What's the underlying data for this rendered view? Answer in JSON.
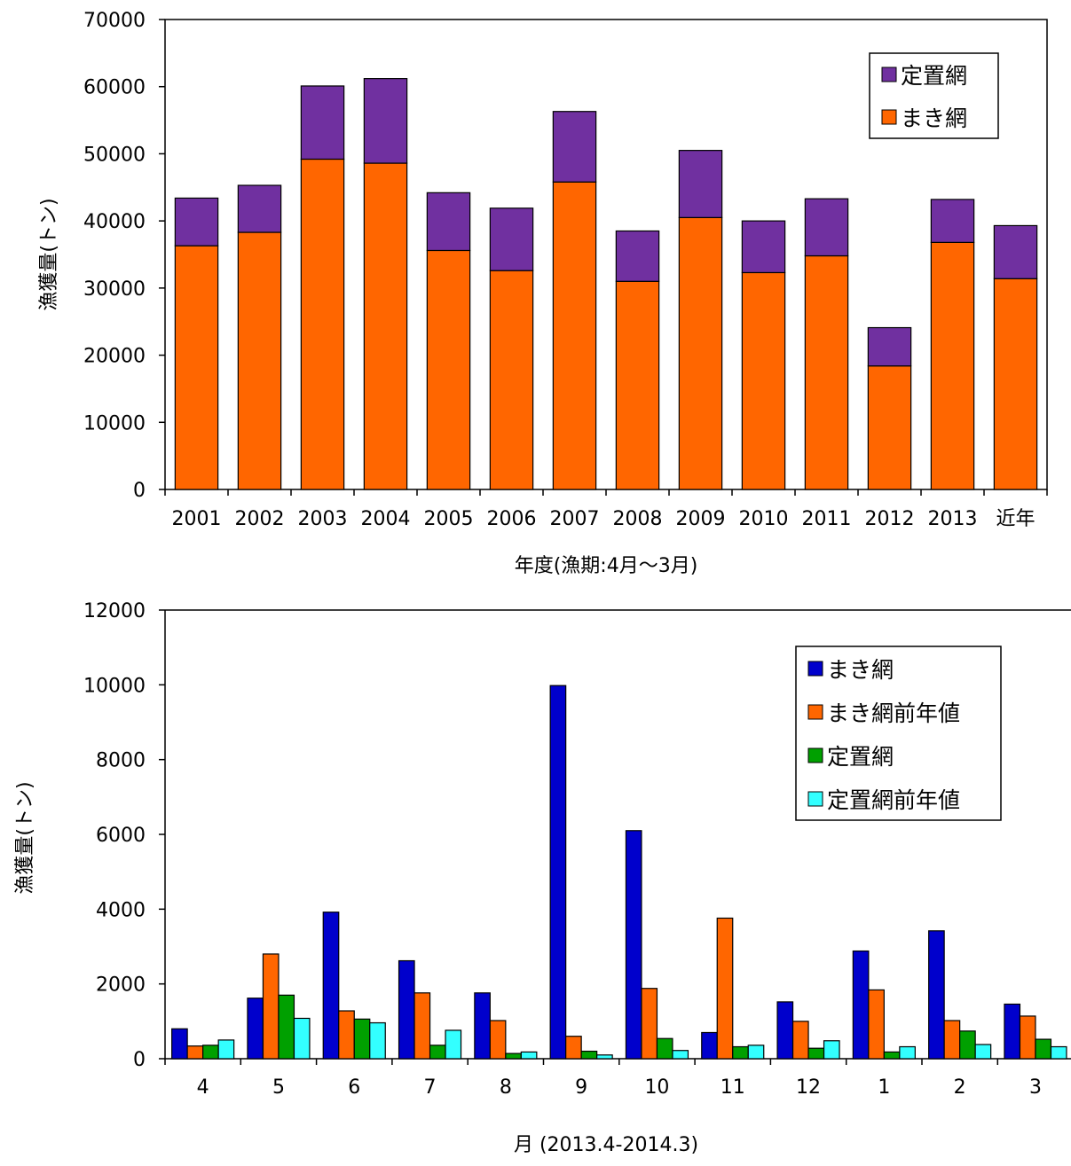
{
  "chart_data": [
    {
      "type": "bar",
      "stacked": true,
      "categories": [
        "2001",
        "2002",
        "2003",
        "2004",
        "2005",
        "2006",
        "2007",
        "2008",
        "2009",
        "2010",
        "2011",
        "2012",
        "2013",
        "近年"
      ],
      "series": [
        {
          "name": "まき網",
          "values": [
            36300,
            38300,
            49200,
            48600,
            35600,
            32600,
            45800,
            31000,
            40500,
            32300,
            34800,
            18400,
            36800,
            31400
          ]
        },
        {
          "name": "定置網",
          "values": [
            7100,
            7000,
            10900,
            12600,
            8600,
            9300,
            10500,
            7500,
            10000,
            7700,
            8500,
            5700,
            6400,
            7900
          ]
        }
      ],
      "xlabel": "年度(漁期:4月〜3月)",
      "ylabel": "漁獲量(トン)",
      "ylim": [
        0,
        70000
      ],
      "yticks": [
        "0",
        "10000",
        "20000",
        "30000",
        "40000",
        "50000",
        "60000",
        "70000"
      ],
      "legend_position": "top-right",
      "grid": false
    },
    {
      "type": "bar",
      "categories": [
        "4",
        "5",
        "6",
        "7",
        "8",
        "9",
        "10",
        "11",
        "12",
        "1",
        "2",
        "3"
      ],
      "series": [
        {
          "name": "まき網",
          "values": [
            800,
            1620,
            3920,
            2620,
            1760,
            9980,
            6100,
            700,
            1520,
            2880,
            3420,
            1460
          ]
        },
        {
          "name": "まき網前年値",
          "values": [
            340,
            2800,
            1280,
            1760,
            1020,
            600,
            1880,
            3760,
            1000,
            1840,
            1020,
            1140
          ]
        },
        {
          "name": "定置網",
          "values": [
            360,
            1700,
            1060,
            360,
            140,
            200,
            540,
            320,
            280,
            180,
            740,
            520
          ]
        },
        {
          "name": "定置網前年値",
          "values": [
            500,
            1080,
            960,
            760,
            180,
            100,
            220,
            360,
            480,
            320,
            380,
            320
          ]
        }
      ],
      "xlabel": "月 (2013.4-2014.3)",
      "ylabel": "漁獲量(トン)",
      "ylim": [
        0,
        12000
      ],
      "yticks": [
        "0",
        "2000",
        "4000",
        "6000",
        "8000",
        "10000",
        "12000"
      ],
      "legend_position": "top-right",
      "grid": false
    }
  ],
  "colors": {
    "makiami_top": "#FF6600",
    "teichiami_top": "#7030A0",
    "makiami": "#0000CC",
    "makiami_prev": "#FF6600",
    "teichiami": "#00A000",
    "teichiami_prev": "#33FFFF"
  }
}
